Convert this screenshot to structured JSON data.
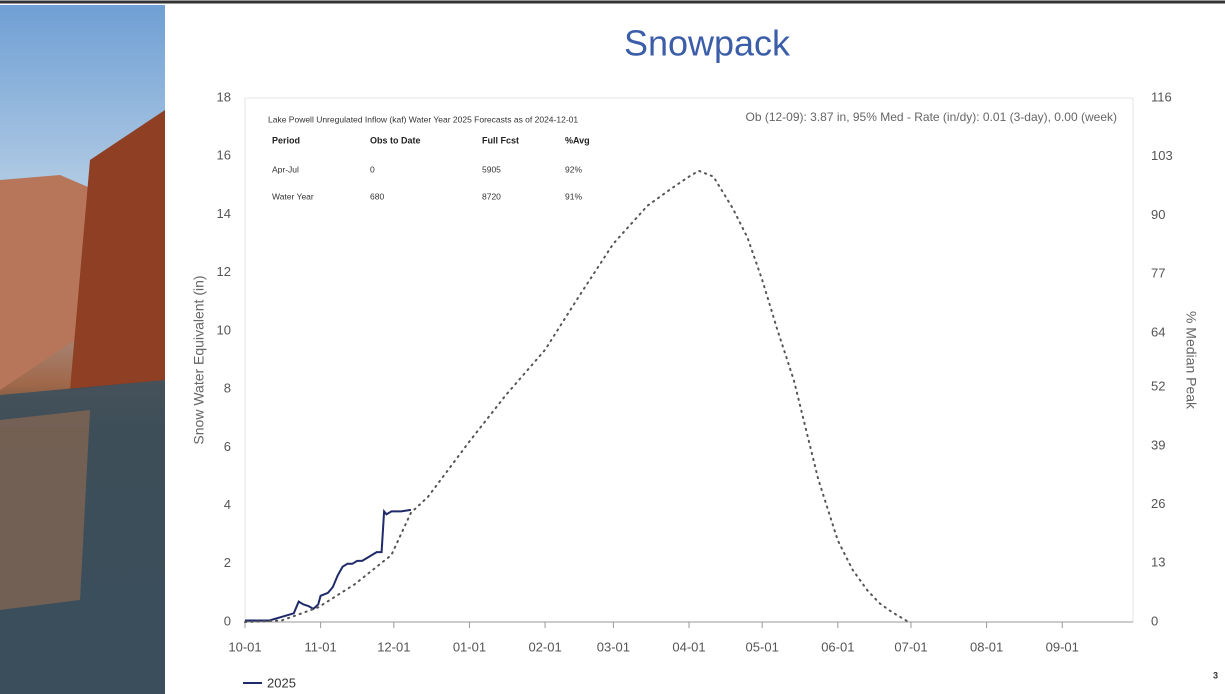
{
  "slide": {
    "title": "Snowpack",
    "page_number": "3"
  },
  "chart_data": {
    "type": "line",
    "y_label": "Snow Water Equivalent (in)",
    "y2_label": "% Median Peak",
    "annotation": "Ob (12-09): 3.87 in, 95% Med - Rate (in/dy): 0.01 (3-day), 0.00 (week)",
    "forecast_table": {
      "title": "Lake Powell Unregulated Inflow (kaf) Water Year 2025 Forecasts as of 2024-12-01",
      "header": [
        "Period",
        "Obs to Date",
        "Full Fcst",
        "%Avg"
      ],
      "rows": [
        [
          "Apr-Jul",
          "0",
          "5905",
          "92%"
        ],
        [
          "Water Year",
          "680",
          "8720",
          "91%"
        ]
      ]
    },
    "xlim": [
      0,
      364
    ],
    "xticks": [
      {
        "value": 0,
        "label": "10-01"
      },
      {
        "value": 31,
        "label": "11-01"
      },
      {
        "value": 61,
        "label": "12-01"
      },
      {
        "value": 92,
        "label": "01-01"
      },
      {
        "value": 123,
        "label": "02-01"
      },
      {
        "value": 151,
        "label": "03-01"
      },
      {
        "value": 182,
        "label": "04-01"
      },
      {
        "value": 212,
        "label": "05-01"
      },
      {
        "value": 243,
        "label": "06-01"
      },
      {
        "value": 273,
        "label": "07-01"
      },
      {
        "value": 304,
        "label": "08-01"
      },
      {
        "value": 335,
        "label": "09-01"
      }
    ],
    "ylim": [
      0,
      18
    ],
    "yticks": [
      0,
      2,
      4,
      6,
      8,
      10,
      12,
      14,
      16,
      18
    ],
    "y2lim": [
      0,
      116
    ],
    "y2ticks": [
      0,
      13,
      26,
      39,
      52,
      64,
      77,
      90,
      103,
      116
    ],
    "series": [
      {
        "name": "2025",
        "color": "#1f2a6b",
        "dash": "solid",
        "x": [
          0,
          10,
          20,
          22,
          24,
          26,
          28,
          30,
          31,
          34,
          36,
          38,
          40,
          42,
          44,
          46,
          48,
          50,
          52,
          54,
          56,
          57,
          58,
          60,
          62,
          64,
          68
        ],
        "values": [
          0.05,
          0.05,
          0.3,
          0.7,
          0.6,
          0.55,
          0.45,
          0.6,
          0.9,
          1.0,
          1.2,
          1.6,
          1.9,
          2.0,
          2.0,
          2.1,
          2.1,
          2.2,
          2.3,
          2.4,
          2.4,
          3.8,
          3.7,
          3.8,
          3.8,
          3.8,
          3.85
        ]
      },
      {
        "color": "#555555",
        "dash": "dotted",
        "x": [
          0,
          15,
          30,
          45,
          60,
          68,
          75,
          92,
          107,
          123,
          137,
          151,
          165,
          175,
          182,
          186,
          192,
          200,
          206,
          212,
          218,
          225,
          230,
          235,
          243,
          249,
          255,
          260,
          265,
          272
        ],
        "values": [
          0,
          0.05,
          0.5,
          1.3,
          2.3,
          3.75,
          4.3,
          6.2,
          7.8,
          9.35,
          11.2,
          13.0,
          14.3,
          14.9,
          15.3,
          15.5,
          15.3,
          14.2,
          13.2,
          11.75,
          10.1,
          8.3,
          6.6,
          4.9,
          2.8,
          1.8,
          1.1,
          0.65,
          0.35,
          0
        ]
      }
    ],
    "legend": "bottom-left"
  }
}
